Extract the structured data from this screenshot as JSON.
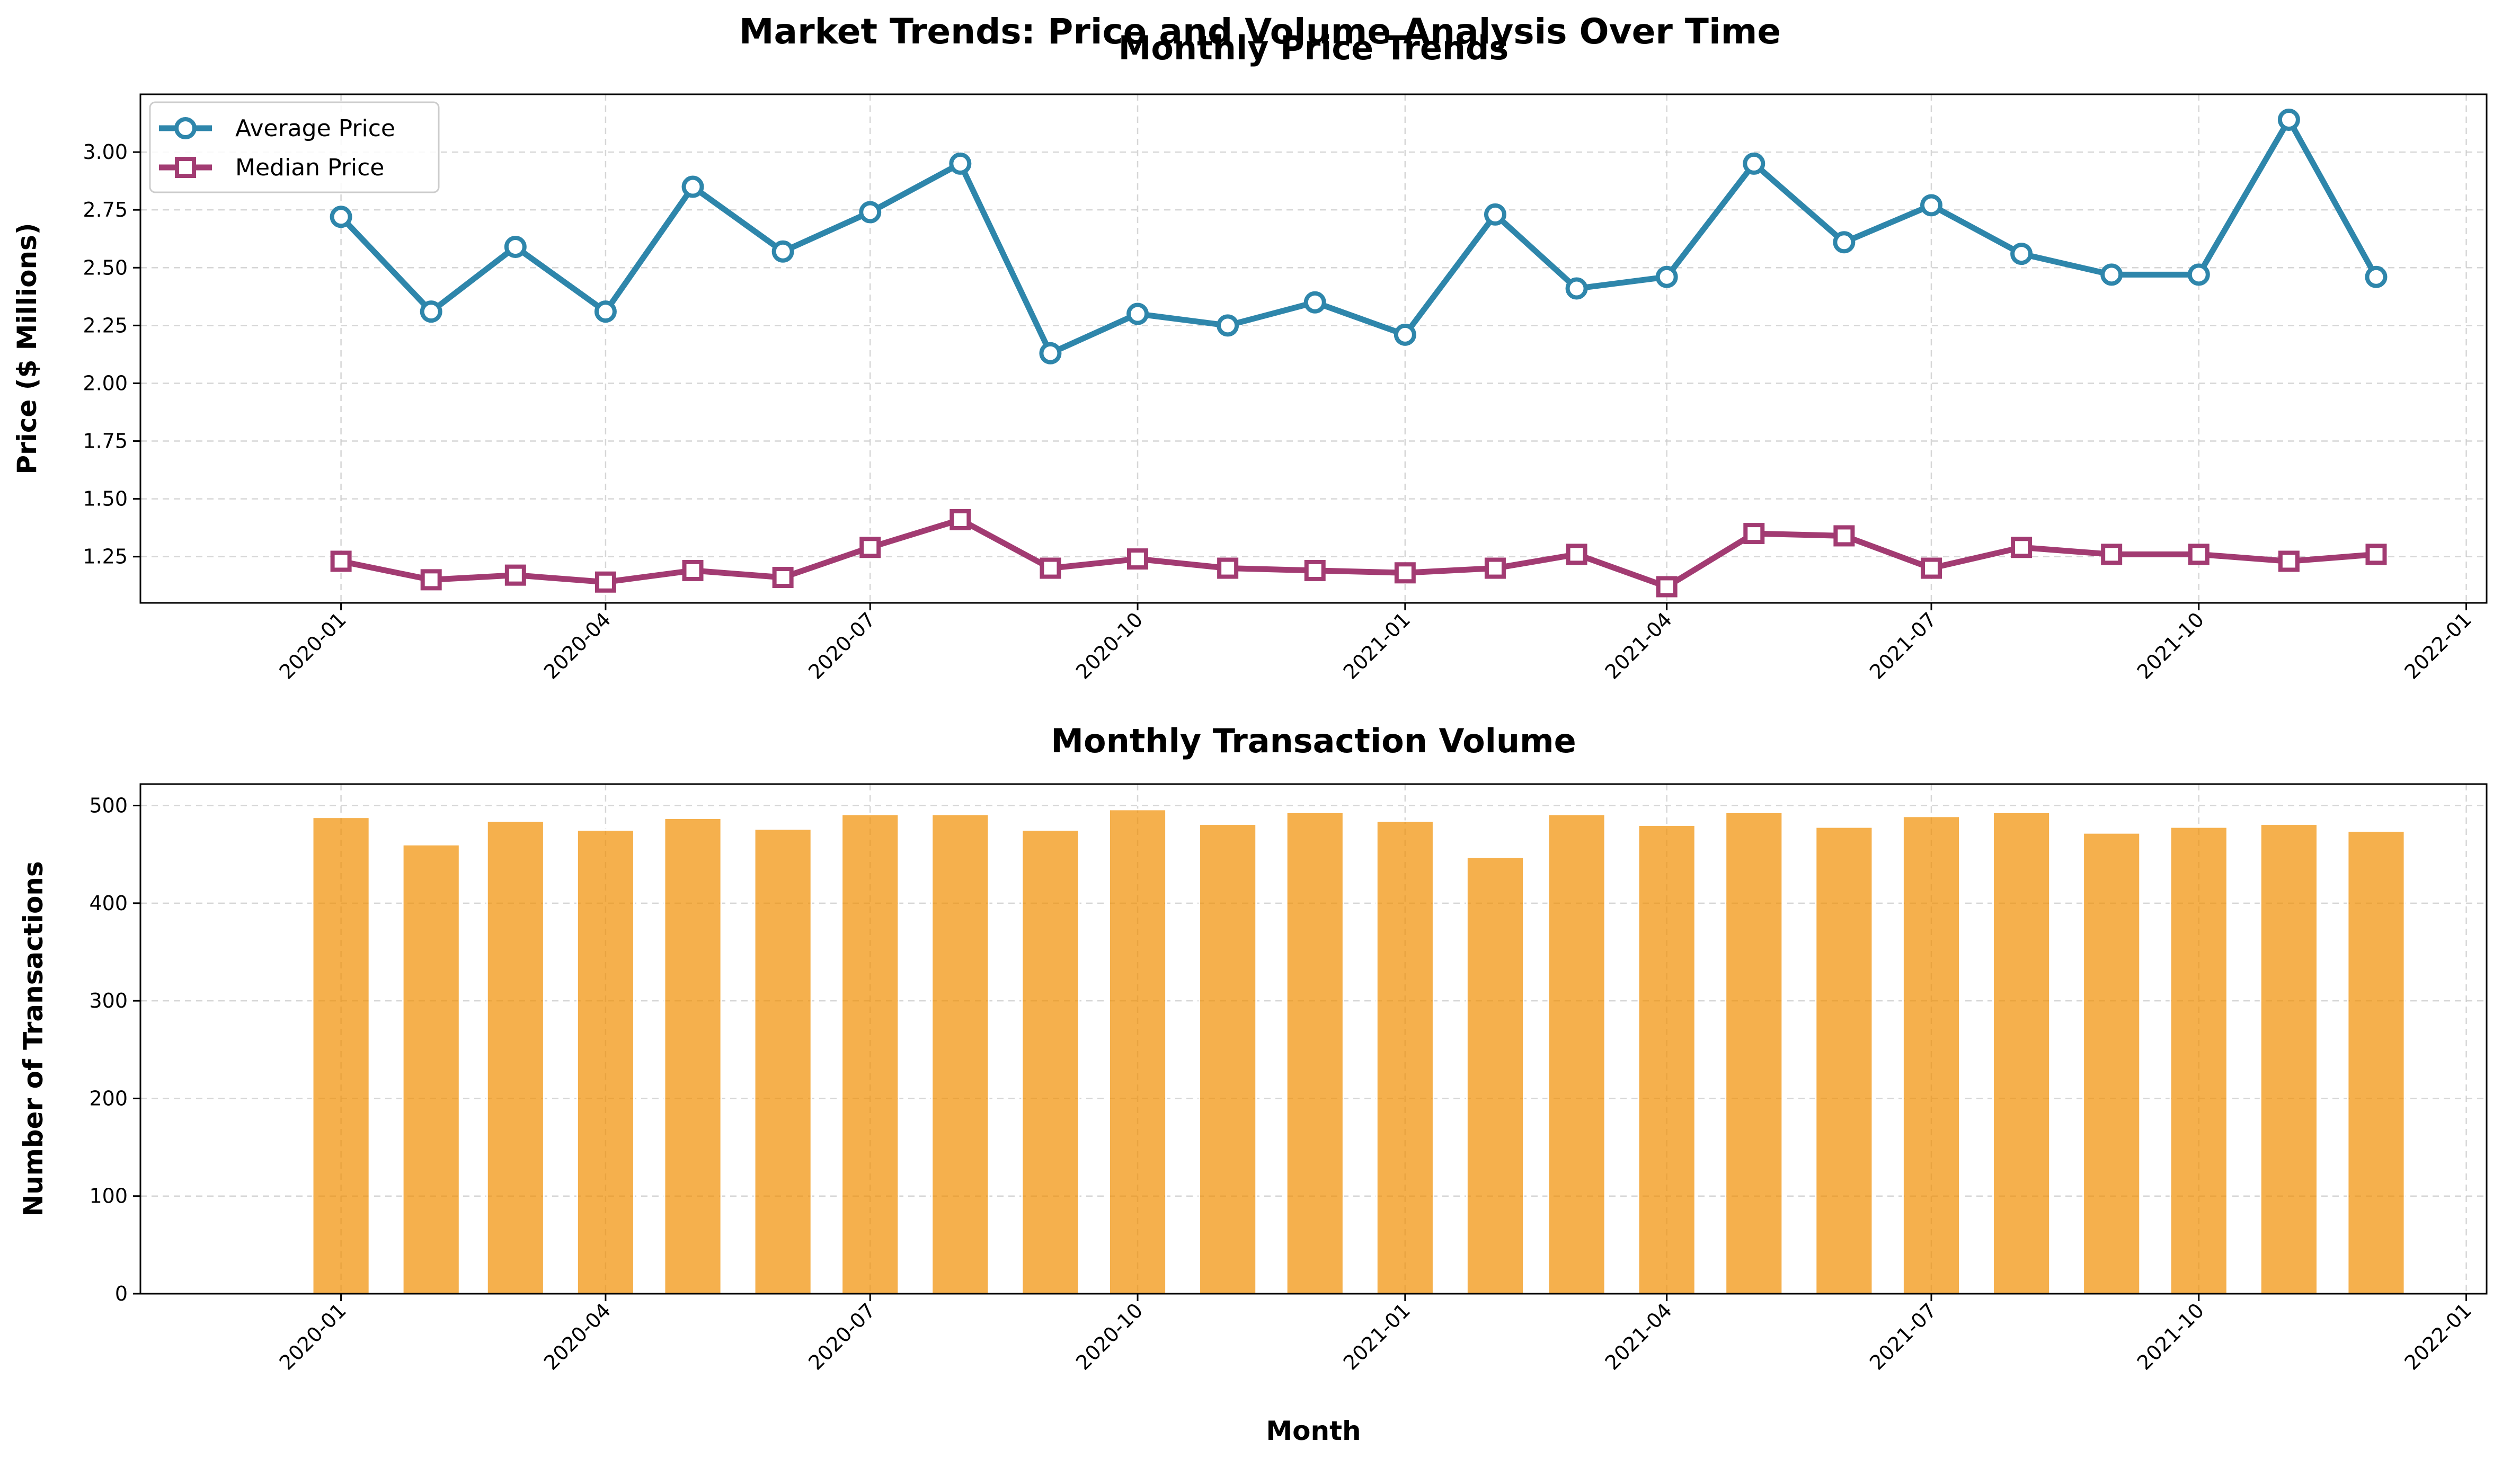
{
  "title": "Market Trends: Price and Volume Analysis Over Time",
  "chart_data": [
    {
      "type": "line",
      "title": "Monthly Price Trends",
      "xlabel": "",
      "ylabel": "Price ($ Millions)",
      "x": [
        "2020-01",
        "2020-02",
        "2020-03",
        "2020-04",
        "2020-05",
        "2020-06",
        "2020-07",
        "2020-08",
        "2020-09",
        "2020-10",
        "2020-11",
        "2020-12",
        "2021-01",
        "2021-02",
        "2021-03",
        "2021-04",
        "2021-05",
        "2021-06",
        "2021-07",
        "2021-08",
        "2021-09",
        "2021-10",
        "2021-11",
        "2021-12"
      ],
      "xlim": [
        "2019-10-24",
        "2022-01-08"
      ],
      "x_ticks": [
        "2020-01",
        "2020-04",
        "2020-07",
        "2020-10",
        "2021-01",
        "2021-04",
        "2021-07",
        "2021-10",
        "2022-01"
      ],
      "ylim": [
        1.05,
        3.25
      ],
      "y_ticks": [
        "1.25",
        "1.50",
        "1.75",
        "2.00",
        "2.25",
        "2.50",
        "2.75",
        "3.00"
      ],
      "grid": true,
      "legend_position": "top-left",
      "series": [
        {
          "name": "Average Price",
          "marker": "circle",
          "color": "#2E86AB",
          "values": [
            2.72,
            2.31,
            2.59,
            2.31,
            2.85,
            2.57,
            2.74,
            2.95,
            2.13,
            2.3,
            2.25,
            2.35,
            2.21,
            2.73,
            2.41,
            2.46,
            2.95,
            2.61,
            2.77,
            2.56,
            2.47,
            2.47,
            3.14,
            2.46
          ]
        },
        {
          "name": "Median Price",
          "marker": "square",
          "color": "#A23B72",
          "values": [
            1.23,
            1.15,
            1.17,
            1.14,
            1.19,
            1.16,
            1.29,
            1.41,
            1.2,
            1.24,
            1.2,
            1.19,
            1.18,
            1.2,
            1.26,
            1.12,
            1.35,
            1.34,
            1.2,
            1.29,
            1.26,
            1.26,
            1.23,
            1.26
          ]
        }
      ]
    },
    {
      "type": "bar",
      "title": "Monthly Transaction Volume",
      "xlabel": "Month",
      "ylabel": "Number of Transactions",
      "x": [
        "2020-01",
        "2020-02",
        "2020-03",
        "2020-04",
        "2020-05",
        "2020-06",
        "2020-07",
        "2020-08",
        "2020-09",
        "2020-10",
        "2020-11",
        "2020-12",
        "2021-01",
        "2021-02",
        "2021-03",
        "2021-04",
        "2021-05",
        "2021-06",
        "2021-07",
        "2021-08",
        "2021-09",
        "2021-10",
        "2021-11",
        "2021-12"
      ],
      "xlim": [
        "2019-10-24",
        "2022-01-08"
      ],
      "x_ticks": [
        "2020-01",
        "2020-04",
        "2020-07",
        "2020-10",
        "2021-01",
        "2021-04",
        "2021-07",
        "2021-10",
        "2022-01"
      ],
      "ylim": [
        0,
        522
      ],
      "y_ticks": [
        "0",
        "100",
        "200",
        "300",
        "400",
        "500"
      ],
      "grid": true,
      "color": "#F18F01",
      "values": [
        488,
        460,
        484,
        475,
        487,
        476,
        491,
        491,
        475,
        496,
        481,
        493,
        484,
        447,
        491,
        480,
        493,
        478,
        489,
        493,
        472,
        478,
        481,
        474
      ]
    }
  ]
}
